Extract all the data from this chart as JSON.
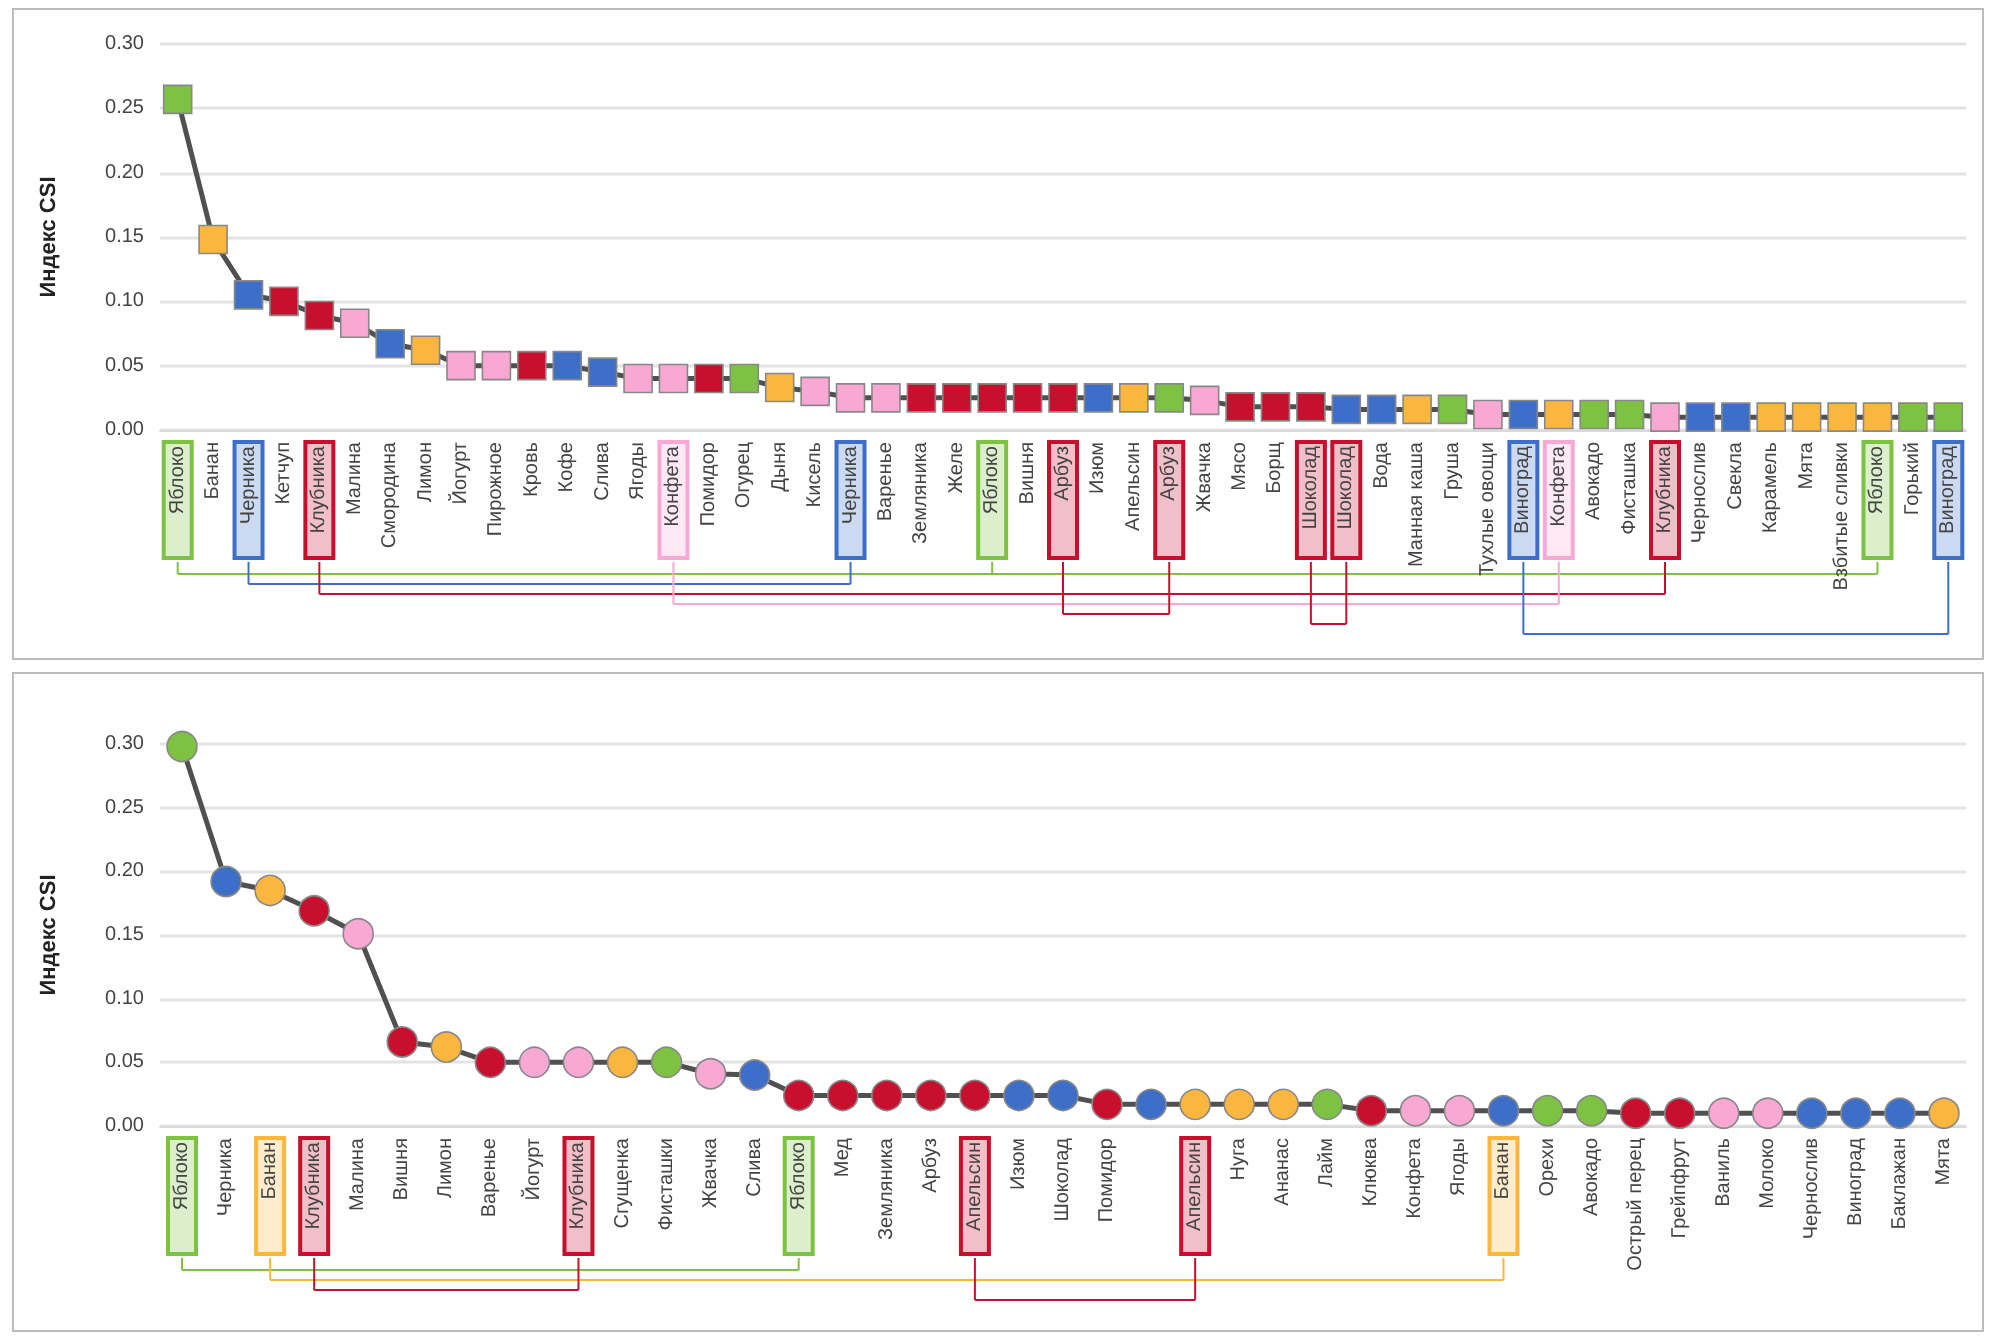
{
  "chart_data": [
    {
      "type": "line",
      "ylabel": "Индекс CSI",
      "marker": "square",
      "grid": "y",
      "color": "#505050",
      "ylim": [
        0,
        0.3
      ],
      "yticks": [
        {
          "value": 0,
          "label": "0.00"
        },
        0.05,
        {
          "value": 0.1,
          "label": "0.10"
        },
        0.15,
        {
          "value": 0.2,
          "label": "0.20"
        },
        0.25,
        {
          "value": 0.3,
          "label": "0.30"
        }
      ],
      "categories": [
        "Яблоко",
        "Банан",
        "Черника",
        "Кетчуп",
        "Клубника",
        "Малина",
        "Смородина",
        "Лимон",
        "Йогурт",
        "Пирожное",
        "Кровь",
        "Кофе",
        "Слива",
        "Ягоды",
        "Конфета",
        "Помидор",
        "Огурец",
        "Дыня",
        "Кисель",
        "Черника",
        "Варенье",
        "Земляника",
        "Желе",
        "Яблоко",
        "Вишня",
        "Арбуз",
        "Изюм",
        "Апельсин",
        "Арбуз",
        "Жвачка",
        "Мясо",
        "Борщ",
        "Шоколад",
        "Шоколад",
        "Вода",
        "Манная каша",
        "Груша",
        "Тухлые овощи",
        "Виноград",
        "Конфета",
        "Авокадо",
        "Фисташка",
        "Клубника",
        "Чернослив",
        "Свекла",
        "Карамель",
        "Мята",
        "Взбитые сливки",
        "Яблоко",
        "Горький",
        "Виноград"
      ],
      "values": [
        0.257,
        0.148,
        0.105,
        0.1,
        0.089,
        0.083,
        0.067,
        0.062,
        0.05,
        0.05,
        0.05,
        0.05,
        0.045,
        0.04,
        0.04,
        0.04,
        0.04,
        0.033,
        0.03,
        0.025,
        0.025,
        0.025,
        0.025,
        0.025,
        0.025,
        0.025,
        0.025,
        0.025,
        0.025,
        0.023,
        0.018,
        0.018,
        0.018,
        0.016,
        0.016,
        0.016,
        0.016,
        0.012,
        0.012,
        0.012,
        0.012,
        0.012,
        0.01,
        0.01,
        0.01,
        0.01,
        0.01,
        0.01,
        0.01,
        0.01,
        0.01
      ],
      "colors": [
        "#7dc242",
        "#fbb63f",
        "#3d6fc9",
        "#c8102e",
        "#c8102e",
        "#f9a8d4",
        "#3d6fc9",
        "#fbb63f",
        "#f9a8d4",
        "#f9a8d4",
        "#c8102e",
        "#3d6fc9",
        "#3d6fc9",
        "#f9a8d4",
        "#f9a8d4",
        "#c8102e",
        "#7dc242",
        "#fbb63f",
        "#f9a8d4",
        "#f9a8d4",
        "#f9a8d4",
        "#c8102e",
        "#c8102e",
        "#c8102e",
        "#c8102e",
        "#c8102e",
        "#3d6fc9",
        "#fbb63f",
        "#7dc242",
        "#f9a8d4",
        "#c8102e",
        "#c8102e",
        "#c8102e",
        "#3d6fc9",
        "#3d6fc9",
        "#fbb63f",
        "#7dc242",
        "#f9a8d4",
        "#3d6fc9",
        "#fbb63f",
        "#7dc242",
        "#7dc242",
        "#f9a8d4",
        "#3d6fc9",
        "#3d6fc9",
        "#fbb63f",
        "#fbb63f",
        "#fbb63f",
        "#fbb63f",
        "#7dc242",
        "#7dc242"
      ]
    },
    {
      "type": "line",
      "ylabel": "Индекс CSI",
      "marker": "circle",
      "grid": "y",
      "color": "#505050",
      "ylim": [
        0,
        0.3
      ],
      "yticks": [
        {
          "value": 0,
          "label": "0.00"
        },
        0.05,
        {
          "value": 0.1,
          "label": "0.10"
        },
        0.15,
        {
          "value": 0.2,
          "label": "0.20"
        },
        0.25,
        {
          "value": 0.3,
          "label": "0.30"
        }
      ],
      "categories": [
        "Яблоко",
        "Черника",
        "Банан",
        "Клубника",
        "Малина",
        "Вишня",
        "Лимон",
        "Варенье",
        "Йогурт",
        "Клубника",
        "Сгущенка",
        "Фисташки",
        "Жвачка",
        "Слива",
        "Яблоко",
        "Мед",
        "Земляника",
        "Арбуз",
        "Апельсин",
        "Изюм",
        "Шоколад",
        "Помидор",
        null,
        "Апельсин",
        "Нуга",
        "Ананас",
        "Лайм",
        "Клюква",
        "Конфета",
        "Ягоды",
        "Банан",
        "Орехи",
        "Авокадо",
        "Острый перец",
        "Грейпфрут",
        "Ваниль",
        "Молоко",
        "Чернослив",
        "Виноград",
        "Баклажан",
        "Мята"
      ],
      "values": [
        0.298,
        0.192,
        0.185,
        0.169,
        0.151,
        0.066,
        0.062,
        0.05,
        0.05,
        0.05,
        0.05,
        0.05,
        0.041,
        0.04,
        0.024,
        0.024,
        0.024,
        0.024,
        0.024,
        0.024,
        0.024,
        0.017,
        0.017,
        0.017,
        0.017,
        0.017,
        0.017,
        0.012,
        0.012,
        0.012,
        0.012,
        0.012,
        0.012,
        0.01,
        0.01,
        0.01,
        0.01,
        0.01,
        0.01,
        0.01,
        0.01
      ],
      "colors": [
        "#7dc242",
        "#3d6fc9",
        "#fbb63f",
        "#c8102e",
        "#f9a8d4",
        "#c8102e",
        "#fbb63f",
        "#c8102e",
        "#f9a8d4",
        "#f9a8d4",
        "#fbb63f",
        "#7dc242",
        "#f9a8d4",
        "#3d6fc9",
        "#c8102e",
        "#c8102e",
        "#c8102e",
        "#c8102e",
        "#c8102e",
        "#3d6fc9",
        "#3d6fc9",
        "#c8102e",
        "#3d6fc9",
        "#fbb63f",
        "#fbb63f",
        "#fbb63f",
        "#7dc242",
        "#c8102e",
        "#f9a8d4",
        "#f9a8d4",
        "#3d6fc9",
        "#7dc242",
        "#7dc242",
        "#c8102e",
        "#c8102e",
        "#f9a8d4",
        "#f9a8d4",
        "#3d6fc9",
        "#3d6fc9",
        "#3d6fc9",
        "#fbb63f"
      ]
    }
  ]
}
